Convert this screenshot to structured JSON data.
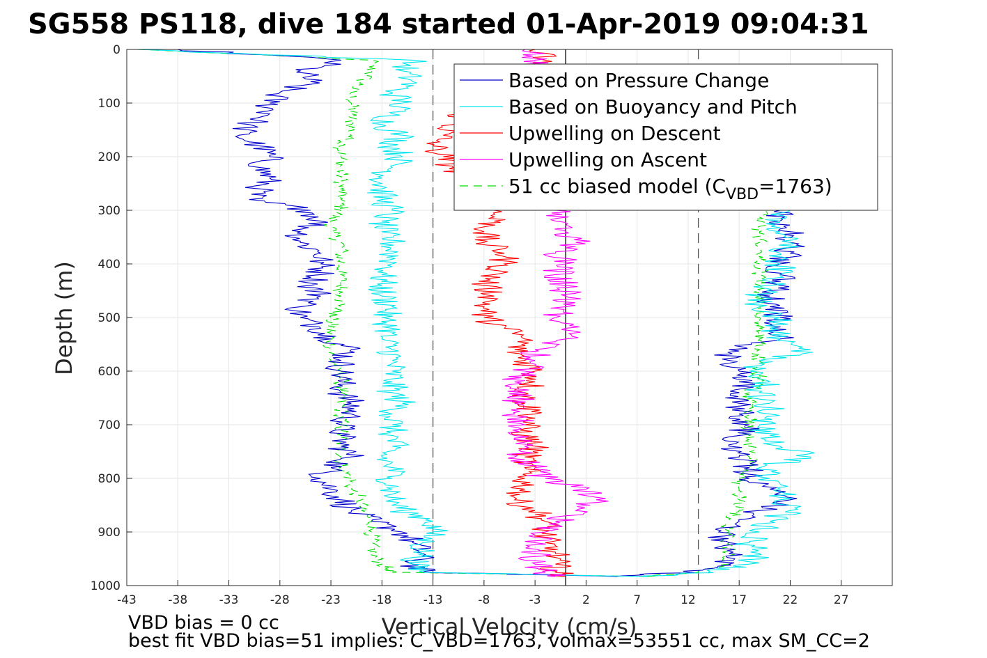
{
  "title": "SG558 PS118, dive 184 started 01-Apr-2019 09:04:31",
  "notes": {
    "line1": "VBD bias = 0 cc",
    "line2": "best fit VBD bias=51 implies: C_VBD=1763, volmax=53551 cc, max SM_CC=2"
  },
  "chart_data": {
    "type": "line",
    "xlabel": "Vertical Velocity (cm/s)",
    "ylabel": "Depth (m)",
    "xlim": [
      -43,
      32
    ],
    "ylim": [
      0,
      1000
    ],
    "y_reversed": true,
    "grid": true,
    "legend_position": "top-right",
    "x_ticks": [
      "-43",
      "-38",
      "-33",
      "-28",
      "-23",
      "-18",
      "-13",
      "-8",
      "-3",
      "2",
      "7",
      "12",
      "17",
      "22",
      "27"
    ],
    "y_ticks": [
      "0",
      "100",
      "200",
      "300",
      "400",
      "500",
      "600",
      "700",
      "800",
      "900",
      "1000"
    ],
    "reference_lines": [
      {
        "x": -13,
        "style": "dashed",
        "color": "#555555"
      },
      {
        "x": 0,
        "style": "solid",
        "color": "#000000"
      },
      {
        "x": 13,
        "style": "dashed",
        "color": "#555555"
      }
    ],
    "series": [
      {
        "name": "Based on Pressure Change",
        "color": "#0000cc",
        "dash": "",
        "descent": {
          "depth": [
            0,
            20,
            40,
            60,
            80,
            100,
            120,
            140,
            160,
            180,
            200,
            220,
            240,
            260,
            280,
            300,
            320,
            340,
            360,
            380,
            400,
            420,
            440,
            460,
            480,
            500,
            520,
            540,
            560,
            580,
            600,
            620,
            640,
            660,
            680,
            700,
            720,
            740,
            760,
            780,
            800,
            820,
            840,
            860,
            880,
            900,
            920,
            940,
            960,
            975,
            983
          ],
          "velocity": [
            -38,
            -22,
            -26,
            -25,
            -28,
            -29,
            -29,
            -31,
            -32,
            -30,
            -29,
            -30,
            -29,
            -30,
            -31,
            -25,
            -24,
            -26,
            -26,
            -24,
            -24,
            -24,
            -25,
            -24,
            -26,
            -26,
            -24,
            -23,
            -21,
            -22,
            -22,
            -22,
            -22,
            -21,
            -21,
            -22,
            -22,
            -22,
            -21,
            -23,
            -24,
            -23,
            -22,
            -21,
            -19,
            -16,
            -15,
            -14,
            -15,
            -14,
            5
          ]
        },
        "ascent": {
          "depth": [
            983,
            975,
            960,
            940,
            920,
            900,
            880,
            860,
            840,
            820,
            800,
            780,
            760,
            740,
            720,
            700,
            680,
            660,
            640,
            620,
            600,
            580,
            560,
            540,
            520,
            500,
            480,
            460,
            440,
            420,
            400,
            380,
            360,
            340,
            320,
            300
          ],
          "velocity": [
            5,
            12,
            16,
            16,
            16,
            15,
            17,
            19,
            22,
            20,
            18,
            18,
            17,
            16,
            17,
            18,
            17,
            17,
            17,
            17,
            17,
            16,
            16,
            21,
            20,
            21,
            20,
            20,
            21,
            21,
            21,
            22,
            22,
            22,
            21,
            21
          ]
        }
      },
      {
        "name": "Based on Buoyancy and Pitch",
        "color": "#00e5ee",
        "dash": "",
        "descent": {
          "depth": [
            0,
            20,
            40,
            60,
            80,
            100,
            120,
            140,
            160,
            180,
            200,
            220,
            240,
            260,
            280,
            300,
            320,
            340,
            360,
            380,
            400,
            420,
            440,
            460,
            480,
            500,
            520,
            540,
            560,
            580,
            600,
            620,
            640,
            660,
            680,
            700,
            720,
            740,
            760,
            780,
            800,
            820,
            840,
            860,
            880,
            900,
            920,
            940,
            960,
            975,
            983
          ],
          "velocity": [
            -42,
            -15,
            -16,
            -15,
            -17,
            -16,
            -17,
            -18,
            -16,
            -17,
            -16,
            -17,
            -18,
            -18,
            -18,
            -17,
            -18,
            -18,
            -17,
            -17,
            -17,
            -18,
            -18,
            -18,
            -17,
            -18,
            -17,
            -18,
            -17,
            -17,
            -17,
            -17,
            -17,
            -16,
            -17,
            -17,
            -17,
            -17,
            -18,
            -17,
            -17,
            -17,
            -17,
            -16,
            -13,
            -13,
            -14,
            -14,
            -15,
            -14,
            8
          ]
        },
        "ascent": {
          "depth": [
            983,
            975,
            960,
            940,
            920,
            900,
            880,
            860,
            840,
            820,
            800,
            780,
            760,
            740,
            720,
            700,
            680,
            660,
            640,
            620,
            600,
            580,
            560,
            540,
            520,
            500,
            480,
            460,
            440,
            420,
            400,
            380,
            360,
            340,
            320,
            300
          ],
          "velocity": [
            8,
            14,
            18,
            19,
            18,
            19,
            20,
            22,
            21,
            21,
            20,
            19,
            24,
            21,
            20,
            19,
            20,
            20,
            19,
            20,
            18,
            19,
            24,
            21,
            20,
            21,
            19,
            19,
            20,
            21,
            21,
            21,
            22,
            21,
            21,
            22
          ]
        }
      },
      {
        "name": "Upwelling on Descent",
        "color": "#ff0000",
        "dash": "",
        "descent": {
          "depth": [
            0,
            20,
            40,
            60,
            80,
            100,
            120,
            140,
            160,
            180,
            200,
            220,
            240,
            260,
            280,
            300,
            320,
            340,
            360,
            380,
            400,
            420,
            440,
            460,
            480,
            500,
            520,
            540,
            560,
            580,
            600,
            620,
            640,
            660,
            680,
            700,
            720,
            740,
            760,
            780,
            800,
            820,
            840,
            860,
            880,
            900,
            920,
            940,
            960,
            975,
            983
          ],
          "velocity": [
            -3,
            -2,
            -3,
            -6,
            -8,
            -9,
            -10,
            -11,
            -12,
            -13,
            -12,
            -11,
            -10,
            -8,
            -9,
            -7,
            -7,
            -8,
            -8,
            -6,
            -6,
            -7,
            -8,
            -7,
            -8,
            -8,
            -6,
            -4,
            -5,
            -4,
            -3,
            -3,
            -4,
            -4,
            -3,
            -4,
            -4,
            -3,
            -4,
            -4,
            -4,
            -4,
            -5,
            -3,
            -2,
            -2,
            -2,
            -1,
            -1,
            -1,
            0
          ]
        }
      },
      {
        "name": "Upwelling on Ascent",
        "color": "#ff00ff",
        "dash": "",
        "ascent": {
          "depth": [
            983,
            975,
            960,
            940,
            920,
            900,
            880,
            860,
            840,
            820,
            800,
            780,
            760,
            740,
            720,
            700,
            680,
            660,
            640,
            620,
            600,
            580,
            560,
            540,
            520,
            500,
            480,
            460,
            440,
            420,
            400,
            380,
            360,
            340,
            320,
            300,
            280,
            260,
            240,
            220,
            200,
            180,
            160,
            140,
            120,
            100,
            80,
            60,
            40,
            20,
            0
          ],
          "velocity": [
            -1,
            -2,
            -3,
            -3,
            -3,
            -2,
            -1,
            1,
            3,
            2,
            -2,
            -3,
            -5,
            -4,
            -5,
            -4,
            -5,
            -5,
            -4,
            -5,
            -4,
            -3,
            -3,
            0,
            0,
            -1,
            0,
            0,
            0,
            -1,
            0,
            -1,
            1,
            0,
            -1,
            -1,
            0,
            -1,
            0,
            0,
            -1,
            -1,
            0,
            0,
            -1,
            -1,
            -2,
            -2,
            -3,
            -3,
            -4
          ]
        }
      },
      {
        "name": "51 cc biased model (C_VBD=1763)",
        "legend_parts": [
          "51 cc biased model (C",
          "VBD",
          "=1763)"
        ],
        "color": "#00dd00",
        "dash": "12,8",
        "descent": {
          "depth": [
            0,
            20,
            40,
            60,
            80,
            100,
            120,
            140,
            160,
            180,
            200,
            220,
            240,
            260,
            280,
            300,
            320,
            340,
            360,
            380,
            400,
            420,
            440,
            460,
            480,
            500,
            520,
            540,
            560,
            580,
            600,
            620,
            640,
            660,
            680,
            700,
            720,
            740,
            760,
            780,
            800,
            820,
            840,
            860,
            880,
            900,
            920,
            940,
            960,
            975,
            983
          ],
          "velocity": [
            -42,
            -19,
            -19,
            -20,
            -21,
            -21,
            -21,
            -21,
            -21,
            -22,
            -22,
            -22,
            -22,
            -22,
            -22,
            -22,
            -23,
            -23,
            -22,
            -22,
            -22,
            -22,
            -22,
            -22,
            -22,
            -23,
            -23,
            -23,
            -23,
            -23,
            -22,
            -22,
            -22,
            -22,
            -22,
            -22,
            -22,
            -22,
            -22,
            -22,
            -21,
            -21,
            -20,
            -20,
            -19,
            -19,
            -19,
            -19,
            -18,
            -17,
            8
          ]
        },
        "ascent": {
          "depth": [
            983,
            975,
            960,
            940,
            920,
            900,
            880,
            860,
            840,
            820,
            800,
            780,
            760,
            740,
            720,
            700,
            680,
            660,
            640,
            620,
            600,
            580,
            560,
            540,
            520,
            500,
            480,
            460,
            440,
            420,
            400,
            380,
            360,
            340,
            320,
            300
          ],
          "velocity": [
            8,
            13,
            16,
            16,
            16,
            16,
            16,
            17,
            17,
            17,
            17,
            18,
            18,
            18,
            18,
            18,
            18,
            18,
            18,
            19,
            19,
            19,
            19,
            19,
            19,
            19,
            19,
            19,
            19,
            19,
            19,
            19,
            19,
            19,
            19,
            19
          ]
        }
      }
    ]
  }
}
